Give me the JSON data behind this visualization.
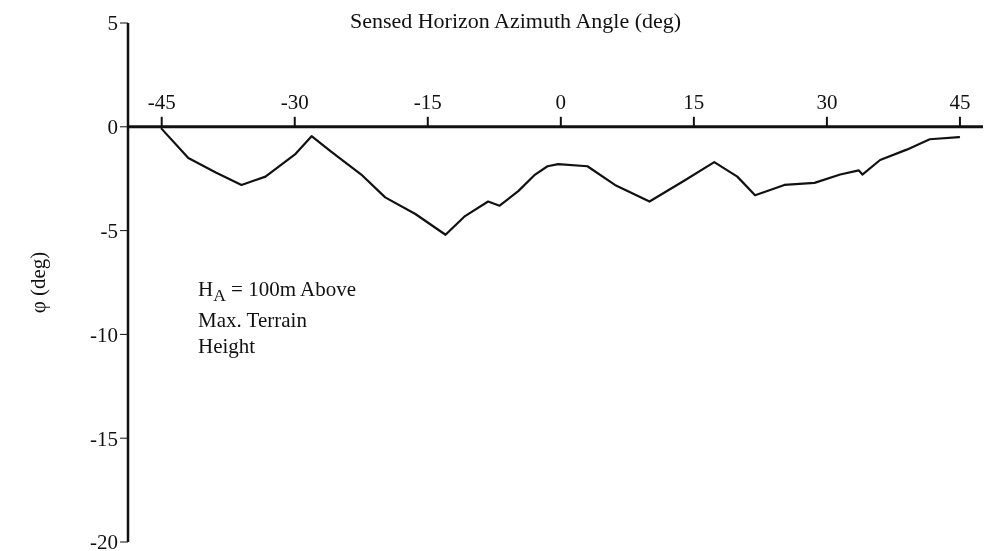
{
  "chart_data": {
    "type": "line",
    "xlabel": "Sensed Horizon Azimuth Angle (deg)",
    "ylabel": "φ (deg)",
    "annotations": [
      "H$_{A}$ = 100m Above\nMax. Terrain\nHeight"
    ],
    "xlim": [
      -48.8,
      47.6
    ],
    "xticks": [
      -45,
      -30,
      -15,
      0,
      15,
      30,
      45
    ],
    "ylim": [
      -20,
      5
    ],
    "yticks": [
      -20,
      -15,
      -10,
      -5,
      0,
      5
    ],
    "series": [
      {
        "color": "#111111",
        "x": [
          -45,
          -42,
          -38.9,
          -36,
          -33.3,
          -29.9,
          -28.1,
          -25.9,
          -22.5,
          -19.8,
          -16.4,
          -13,
          -10.8,
          -8.2,
          -6.9,
          -4.8,
          -2.9,
          -1.5,
          -0.3,
          3,
          6.1,
          10,
          13.9,
          17.3,
          19.9,
          21.9,
          25.2,
          28.6,
          31.5,
          33.6,
          34,
          36,
          39,
          41.6,
          44.9
        ],
        "values": [
          -0.1,
          -1.5,
          -2.2,
          -2.8,
          -2.4,
          -1.3,
          -0.45,
          -1.2,
          -2.3,
          -3.4,
          -4.2,
          -5.2,
          -4.3,
          -3.6,
          -3.8,
          -3.1,
          -2.3,
          -1.9,
          -1.8,
          -1.9,
          -2.8,
          -3.6,
          -2.6,
          -1.7,
          -2.4,
          -3.3,
          -2.8,
          -2.7,
          -2.3,
          -2.1,
          -2.3,
          -1.6,
          -1.1,
          -0.6,
          -0.5
        ]
      }
    ],
    "marker": "none",
    "line_style": "solid"
  }
}
